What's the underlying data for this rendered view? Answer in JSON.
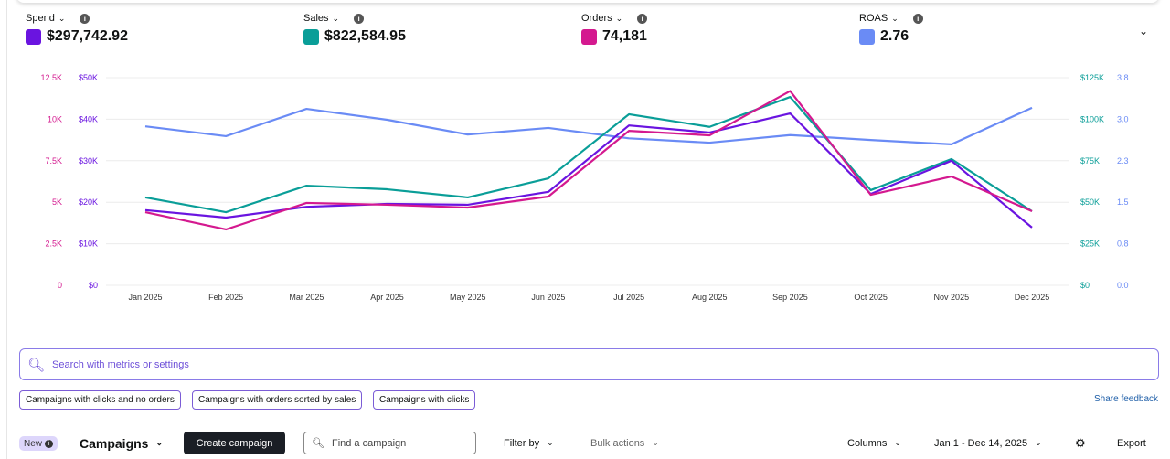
{
  "metrics": [
    {
      "label": "Spend",
      "value": "$297,742.92",
      "color": "#6a14e0"
    },
    {
      "label": "Sales",
      "value": "$822,584.95",
      "color": "#0a9e98"
    },
    {
      "label": "Orders",
      "value": "74,181",
      "color": "#d4198f"
    },
    {
      "label": "ROAS",
      "value": "2.76",
      "color": "#6a8bf5"
    }
  ],
  "chart_data": {
    "type": "line",
    "categories": [
      "Jan 2025",
      "Feb 2025",
      "Mar 2025",
      "Apr 2025",
      "May 2025",
      "Jun 2025",
      "Jul 2025",
      "Aug 2025",
      "Sep 2025",
      "Oct 2025",
      "Nov 2025",
      "Dec 2025"
    ],
    "axes": {
      "orders": {
        "ticks": [
          "0",
          "2.5K",
          "5K",
          "7.5K",
          "10K",
          "12.5K"
        ],
        "max": 12500,
        "color": "#d4198f"
      },
      "spend": {
        "ticks": [
          "$0",
          "$10K",
          "$20K",
          "$30K",
          "$40K",
          "$50K"
        ],
        "max": 50000,
        "color": "#6a14e0"
      },
      "sales": {
        "ticks": [
          "$0",
          "$25K",
          "$50K",
          "$75K",
          "$100K",
          "$125K"
        ],
        "max": 125000,
        "color": "#0a9e98"
      },
      "roas": {
        "ticks": [
          "0.0",
          "0.8",
          "1.5",
          "2.3",
          "3.0",
          "3.8"
        ],
        "max": 3.8,
        "color": "#6a8bf5"
      }
    },
    "series": [
      {
        "name": "ROAS",
        "axis": "roas",
        "values": [
          2.91,
          2.73,
          3.23,
          3.03,
          2.76,
          2.88,
          2.69,
          2.61,
          2.75,
          2.66,
          2.58,
          3.25
        ]
      },
      {
        "name": "Sales",
        "axis": "sales",
        "values": [
          52900,
          44000,
          60000,
          57800,
          52900,
          64400,
          103000,
          95400,
          113400,
          57300,
          76000,
          44600
        ]
      },
      {
        "name": "Spend",
        "axis": "spend",
        "values": [
          18100,
          16300,
          18900,
          19600,
          19400,
          22500,
          38500,
          36800,
          41400,
          22000,
          30000,
          13900
        ]
      },
      {
        "name": "Orders",
        "axis": "orders",
        "values": [
          4400,
          3360,
          4960,
          4850,
          4680,
          5340,
          9300,
          9030,
          11700,
          5450,
          6550,
          4460
        ]
      }
    ],
    "grid": true
  },
  "search": {
    "placeholder": "Search with metrics or settings"
  },
  "chips": [
    "Campaigns with clicks and no orders",
    "Campaigns with orders sorted by sales",
    "Campaigns with clicks"
  ],
  "feedback": "Share feedback",
  "toolbar": {
    "new": "New",
    "title": "Campaigns",
    "create": "Create campaign",
    "find_placeholder": "Find a campaign",
    "filter": "Filter by",
    "bulk": "Bulk actions",
    "columns": "Columns",
    "date": "Jan 1 - Dec 14, 2025",
    "export": "Export"
  }
}
